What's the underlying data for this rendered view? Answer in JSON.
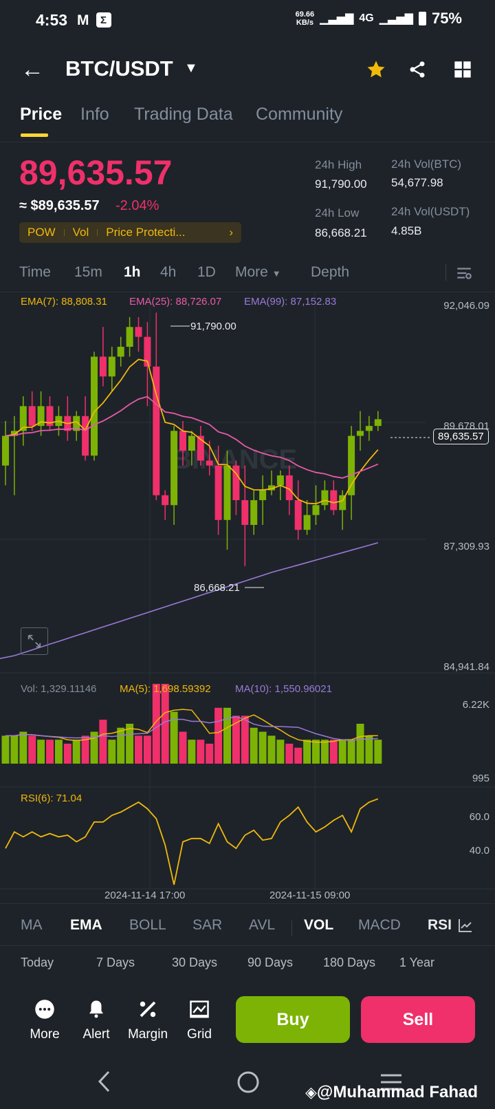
{
  "status": {
    "time": "4:53",
    "speed_value": "69.66",
    "speed_unit": "KB/s",
    "network": "4G",
    "battery": "75%"
  },
  "header": {
    "pair": "BTC/USDT"
  },
  "tabs": [
    "Price",
    "Info",
    "Trading Data",
    "Community"
  ],
  "price": {
    "last": "89,635.57",
    "fiat": "≈ $89,635.57",
    "change": "-2.04%",
    "tags": [
      "POW",
      "Vol",
      "Price Protecti..."
    ],
    "high_label": "24h High",
    "high_value": "91,790.00",
    "low_label": "24h Low",
    "low_value": "86,668.21",
    "vol_btc_label": "24h Vol(BTC)",
    "vol_btc_value": "54,677.98",
    "vol_usdt_label": "24h Vol(USDT)",
    "vol_usdt_value": "4.85B"
  },
  "intervals": {
    "time": "Time",
    "m15": "15m",
    "h1": "1h",
    "h4": "4h",
    "d1": "1D",
    "more": "More",
    "depth": "Depth"
  },
  "chart": {
    "ema7": "EMA(7): 88,808.31",
    "ema25": "EMA(25): 88,726.07",
    "ema99": "EMA(99): 87,152.83",
    "axis": [
      "92,046.09",
      "89,678.01",
      "87,309.93",
      "84,941.84"
    ],
    "current_price_tag": "89,635.57",
    "high_marker": "91,790.00",
    "low_marker": "86,668.21",
    "watermark": "BINANCE",
    "colors": {
      "up": "#7cb305",
      "down": "#f0306b",
      "ema7": "#f0b90b",
      "ema25": "#e85aa8",
      "ema99": "#9b7ad8"
    }
  },
  "volume": {
    "vol": "Vol: 1,329.11146",
    "ma5": "MA(5): 1,698.59392",
    "ma10": "MA(10): 1,550.96021",
    "axis_top": "6.22K",
    "axis_bottom": "995"
  },
  "rsi": {
    "label": "RSI(6): 71.04",
    "axis": [
      "60.0",
      "40.0"
    ]
  },
  "time_axis": [
    "2024-11-14 17:00",
    "2024-11-15 09:00"
  ],
  "chart_data": {
    "type": "candlestick",
    "title": "BTC/USDT 1h",
    "ylim": [
      84941.84,
      92046.09
    ],
    "candles": [
      [
        88700,
        89300,
        88300,
        89600
      ],
      [
        89300,
        89400,
        88100,
        89700
      ],
      [
        89400,
        89900,
        89100,
        90100
      ],
      [
        89900,
        89500,
        89400,
        90200
      ],
      [
        89500,
        89900,
        89300,
        90200
      ],
      [
        89900,
        89500,
        89400,
        90100
      ],
      [
        89500,
        89700,
        89300,
        89900
      ],
      [
        89700,
        89400,
        89200,
        90100
      ],
      [
        89400,
        89700,
        89200,
        89800
      ],
      [
        89700,
        88900,
        88800,
        90100
      ],
      [
        88900,
        90900,
        88800,
        91000
      ],
      [
        90900,
        90500,
        90300,
        91500
      ],
      [
        90500,
        90900,
        90200,
        91100
      ],
      [
        90900,
        91100,
        90700,
        91300
      ],
      [
        91100,
        91500,
        90900,
        91700
      ],
      [
        91500,
        91300,
        91000,
        91700
      ],
      [
        91300,
        90700,
        89900,
        91600
      ],
      [
        90700,
        88100,
        88000,
        91790
      ],
      [
        88100,
        87900,
        87600,
        88200
      ],
      [
        87900,
        89400,
        87500,
        89500
      ],
      [
        89400,
        89000,
        88700,
        89600
      ],
      [
        89000,
        89300,
        88700,
        89400
      ],
      [
        89300,
        88800,
        88700,
        89500
      ],
      [
        88800,
        88700,
        88500,
        89200
      ],
      [
        88700,
        87600,
        87300,
        89100
      ],
      [
        87600,
        88700,
        87000,
        89000
      ],
      [
        88700,
        88000,
        87700,
        88800
      ],
      [
        88000,
        87500,
        86668.21,
        88700
      ],
      [
        87500,
        88000,
        87300,
        88200
      ],
      [
        88000,
        88200,
        87500,
        88500
      ],
      [
        88200,
        88300,
        88100,
        88600
      ],
      [
        88300,
        88500,
        88000,
        88600
      ],
      [
        88500,
        88000,
        87700,
        88700
      ],
      [
        88000,
        87400,
        87200,
        88400
      ],
      [
        87400,
        87700,
        87300,
        88000
      ],
      [
        87700,
        87900,
        87500,
        88300
      ],
      [
        87900,
        88200,
        87800,
        88400
      ],
      [
        88200,
        87800,
        87700,
        88400
      ],
      [
        87800,
        88100,
        87400,
        88200
      ],
      [
        88100,
        89300,
        87600,
        89500
      ],
      [
        89300,
        89400,
        89000,
        89800
      ],
      [
        89400,
        89500,
        89200,
        89700
      ],
      [
        89500,
        89635.57,
        89400,
        89800
      ]
    ]
  },
  "indicators": [
    "MA",
    "EMA",
    "BOLL",
    "SAR",
    "AVL",
    "VOL",
    "MACD",
    "RSI"
  ],
  "performance": [
    "Today",
    "7 Days",
    "30 Days",
    "90 Days",
    "180 Days",
    "1 Year"
  ],
  "actions": {
    "more": "More",
    "alert": "Alert",
    "margin": "Margin",
    "grid": "Grid",
    "buy": "Buy",
    "sell": "Sell"
  },
  "watermark_user": "@Muhammad Fahad"
}
